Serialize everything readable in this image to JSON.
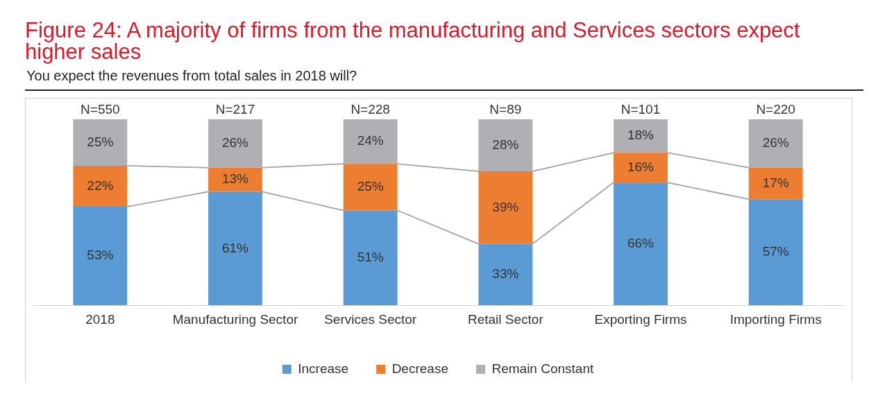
{
  "chart_data": {
    "type": "bar",
    "title": "Figure 24: A majority of firms from the manufacturing and Services sectors expect higher sales",
    "subtitle": "You expect the revenues from total sales in 2018 will?",
    "categories": [
      "2018",
      "Manufacturing Sector",
      "Services Sector",
      "Retail Sector",
      "Exporting Firms",
      "Importing Firms"
    ],
    "series": [
      {
        "name": "Increase",
        "color": "#5b9bd5",
        "values": [
          53,
          61,
          51,
          33,
          66,
          57
        ],
        "value_labels": [
          "53%",
          "61%",
          "51%",
          "33%",
          "66%",
          "57%"
        ]
      },
      {
        "name": "Decrease",
        "color": "#ed7d31",
        "values": [
          22,
          13,
          25,
          39,
          16,
          17
        ],
        "value_labels": [
          "22%",
          "13%",
          "25%",
          "39%",
          "16%",
          "17%"
        ]
      },
      {
        "name": "Remain Constant",
        "color": "#b0b0b4",
        "values": [
          25,
          26,
          24,
          28,
          18,
          26
        ],
        "value_labels": [
          "25%",
          "26%",
          "24%",
          "28%",
          "18%",
          "26%"
        ]
      }
    ],
    "annotations": [
      {
        "text": "N=550",
        "x": "2018",
        "y": 100
      },
      {
        "text": "N=217",
        "x": "Manufacturing Sector",
        "y": 100
      },
      {
        "text": "N=228",
        "x": "Services Sector",
        "y": 100
      },
      {
        "text": "N=89",
        "x": "Retail Sector",
        "y": 100
      },
      {
        "text": "N=101",
        "x": "Exporting Firms",
        "y": 100
      },
      {
        "text": "N=220",
        "x": "Importing Firms",
        "y": 100
      }
    ],
    "stacked": true,
    "tick_labels": "x",
    "legend": "bottom"
  }
}
